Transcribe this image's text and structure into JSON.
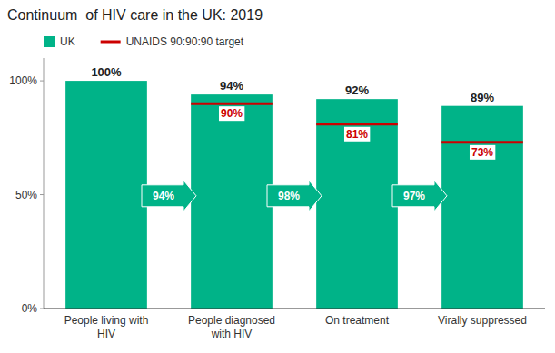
{
  "chart_data": {
    "type": "bar",
    "title": "Continuum  of HIV care in the UK: 2019",
    "categories": [
      "People living with\nHIV",
      "People diagnosed\nwith HIV",
      "On treatment",
      "Virally suppressed"
    ],
    "series": [
      {
        "name": "UK",
        "color": "#00b388",
        "values": [
          100,
          94,
          92,
          89
        ],
        "value_labels": [
          "100%",
          "94%",
          "92%",
          "89%"
        ]
      },
      {
        "name": "UNAIDS 90:90:90 target",
        "type": "target",
        "color": "#cc0000",
        "values": [
          null,
          90,
          81,
          73
        ],
        "value_labels": [
          null,
          "90%",
          "81%",
          "73%"
        ]
      }
    ],
    "annotations": [
      "94%",
      "98%",
      "97%"
    ],
    "ylim": [
      0,
      110
    ],
    "yticks": [
      {
        "value": 0,
        "label": "0%"
      },
      {
        "value": 50,
        "label": "50%"
      },
      {
        "value": 100,
        "label": "100%"
      }
    ],
    "grid": false,
    "legend": "top",
    "data_labels": true
  }
}
